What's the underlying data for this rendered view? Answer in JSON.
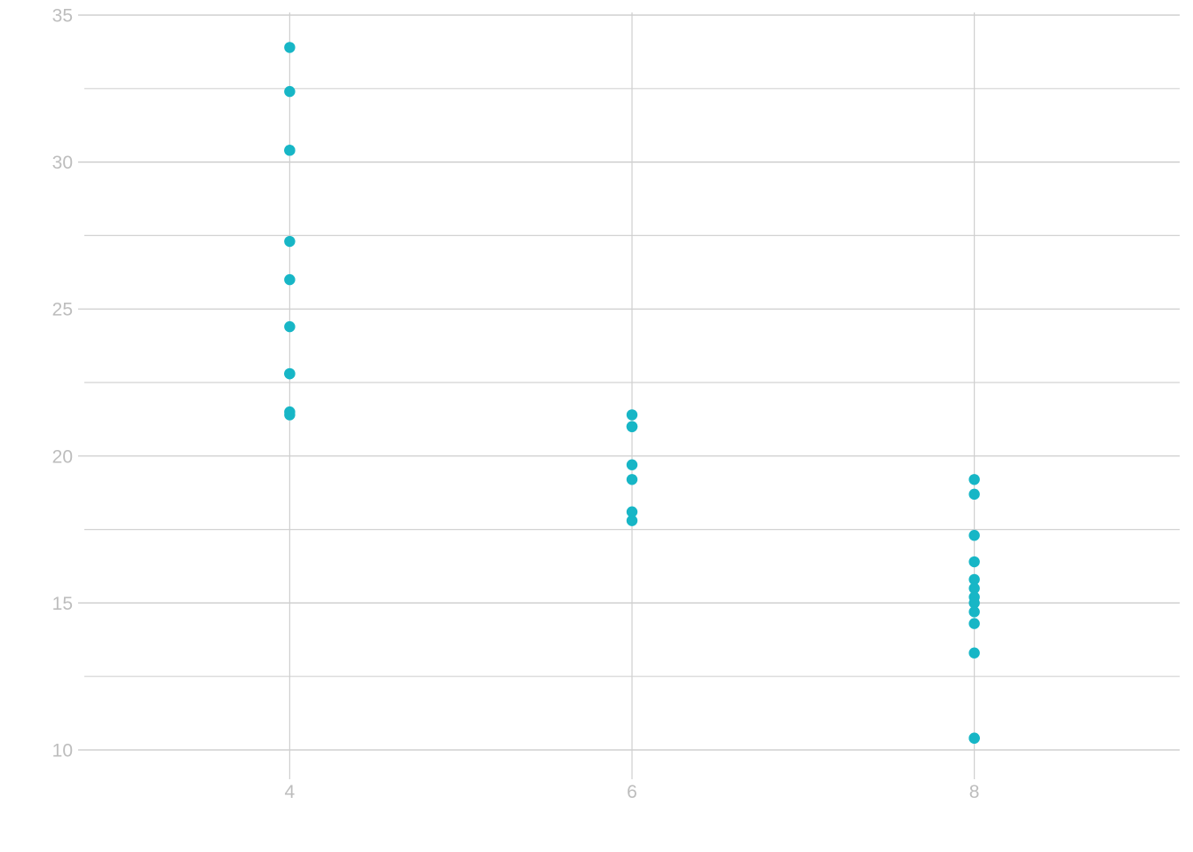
{
  "chart_data": {
    "type": "scatter",
    "title": "",
    "xlabel": "",
    "ylabel": "",
    "xlim": [
      2.8,
      9.2
    ],
    "ylim": [
      10,
      35
    ],
    "x_ticks": [
      4,
      6,
      8
    ],
    "y_ticks": [
      10,
      15,
      20,
      25,
      30,
      35
    ],
    "y_minor_ticks": [
      12.5,
      17.5,
      22.5,
      27.5,
      32.5
    ],
    "grid": true,
    "legend": false,
    "colors": {
      "point": "#17b6c6",
      "grid": "#cfcfcf",
      "tick_text": "#bdbdbd"
    },
    "series": [
      {
        "points": [
          {
            "x": 4,
            "y": 33.9
          },
          {
            "x": 4,
            "y": 32.4
          },
          {
            "x": 4,
            "y": 30.4
          },
          {
            "x": 4,
            "y": 30.4
          },
          {
            "x": 4,
            "y": 27.3
          },
          {
            "x": 4,
            "y": 26.0
          },
          {
            "x": 4,
            "y": 24.4
          },
          {
            "x": 4,
            "y": 22.8
          },
          {
            "x": 4,
            "y": 22.8
          },
          {
            "x": 4,
            "y": 21.5
          },
          {
            "x": 4,
            "y": 21.4
          },
          {
            "x": 6,
            "y": 21.4
          },
          {
            "x": 6,
            "y": 21.0
          },
          {
            "x": 6,
            "y": 21.0
          },
          {
            "x": 6,
            "y": 19.7
          },
          {
            "x": 6,
            "y": 19.2
          },
          {
            "x": 6,
            "y": 18.1
          },
          {
            "x": 6,
            "y": 17.8
          },
          {
            "x": 8,
            "y": 19.2
          },
          {
            "x": 8,
            "y": 18.7
          },
          {
            "x": 8,
            "y": 17.3
          },
          {
            "x": 8,
            "y": 16.4
          },
          {
            "x": 8,
            "y": 15.8
          },
          {
            "x": 8,
            "y": 15.5
          },
          {
            "x": 8,
            "y": 15.2
          },
          {
            "x": 8,
            "y": 15.0
          },
          {
            "x": 8,
            "y": 14.7
          },
          {
            "x": 8,
            "y": 14.3
          },
          {
            "x": 8,
            "y": 13.3
          },
          {
            "x": 8,
            "y": 10.4
          },
          {
            "x": 8,
            "y": 10.4
          }
        ]
      }
    ]
  }
}
